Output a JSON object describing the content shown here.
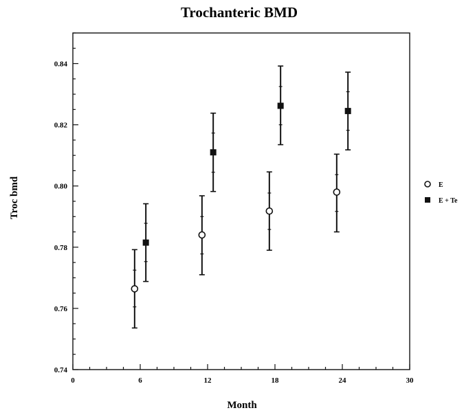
{
  "chart_data": {
    "type": "scatter",
    "title": "Trochanteric BMD",
    "xlabel": "Month",
    "ylabel": "Troc bmd",
    "xlim": [
      0,
      30
    ],
    "ylim": [
      0.74,
      0.85
    ],
    "xticks": [
      0,
      6,
      12,
      18,
      24,
      30
    ],
    "xtick_labels": [
      "0",
      "6",
      "12",
      "18",
      "24",
      "30"
    ],
    "yticks": [
      0.74,
      0.76,
      0.78,
      0.8,
      0.82,
      0.84
    ],
    "ytick_labels": [
      "0.74",
      "0.76",
      "0.78",
      "0.80",
      "0.82",
      "0.84"
    ],
    "grid": false,
    "legend_position": "right",
    "error_bars": true,
    "series": [
      {
        "name": "E",
        "marker": "open-circle",
        "x": [
          5.5,
          11.5,
          17.5,
          23.5
        ],
        "y": [
          0.7664,
          0.784,
          0.7918,
          0.798
        ],
        "err_low": [
          0.7536,
          0.771,
          0.779,
          0.785
        ],
        "err_high": [
          0.7792,
          0.7968,
          0.8046,
          0.8104
        ],
        "inner_ticks": [
          [
            0.7605,
            0.7725
          ],
          [
            0.7778,
            0.79
          ],
          [
            0.7858,
            0.7977
          ],
          [
            0.7917,
            0.8037
          ]
        ]
      },
      {
        "name": "E + Te",
        "marker": "filled-square",
        "x": [
          6.5,
          12.5,
          18.5,
          24.5
        ],
        "y": [
          0.7815,
          0.811,
          0.8262,
          0.8245
        ],
        "err_low": [
          0.7688,
          0.7982,
          0.8135,
          0.8118
        ],
        "err_high": [
          0.7942,
          0.8238,
          0.8392,
          0.8372
        ],
        "inner_ticks": [
          [
            0.7753,
            0.7878
          ],
          [
            0.8045,
            0.8173
          ],
          [
            0.82,
            0.8325
          ],
          [
            0.8182,
            0.8308
          ]
        ]
      }
    ]
  }
}
